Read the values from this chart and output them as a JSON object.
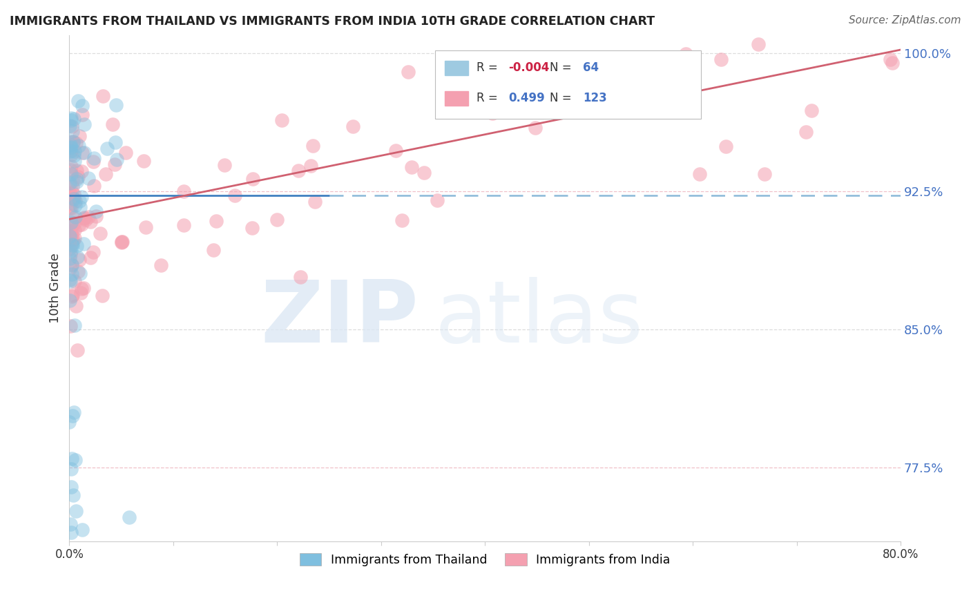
{
  "title": "IMMIGRANTS FROM THAILAND VS IMMIGRANTS FROM INDIA 10TH GRADE CORRELATION CHART",
  "source": "Source: ZipAtlas.com",
  "ylabel": "10th Grade",
  "legend_labels": [
    "Immigrants from Thailand",
    "Immigrants from India"
  ],
  "r_thailand": -0.004,
  "n_thailand": 64,
  "r_india": 0.499,
  "n_india": 123,
  "xmin": 0.0,
  "xmax": 0.8,
  "ymin": 0.735,
  "ymax": 1.01,
  "yticks": [
    1.0,
    0.925,
    0.85,
    0.775
  ],
  "ytick_labels": [
    "100.0%",
    "92.5%",
    "85.0%",
    "77.5%"
  ],
  "xticks": [
    0.0,
    0.1,
    0.2,
    0.3,
    0.4,
    0.5,
    0.6,
    0.7,
    0.8
  ],
  "xtick_labels": [
    "0.0%",
    "",
    "",
    "",
    "",
    "",
    "",
    "",
    "80.0%"
  ],
  "color_thailand": "#7fbfdf",
  "color_india": "#f4a0b0",
  "color_trend_thailand": "#4080c0",
  "color_trend_india": "#d06070",
  "color_dashed_thailand": "#8ab8d8",
  "background_color": "#ffffff",
  "trend_thailand_y0": 0.923,
  "trend_thailand_y1": 0.923,
  "trend_thailand_solid_xmax": 0.25,
  "trend_india_y0": 0.91,
  "trend_india_y1": 1.002,
  "grid_color": "#dddddd",
  "grid_dashed_color": "#aaccee"
}
